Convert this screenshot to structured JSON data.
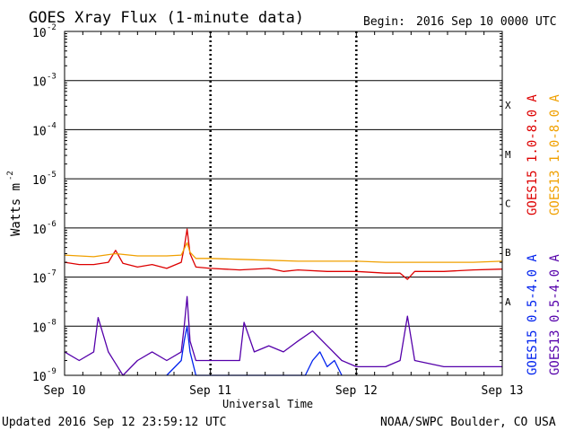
{
  "chart_data": {
    "type": "line",
    "title": "GOES Xray Flux (1-minute data)",
    "begin_label": "Begin:",
    "begin_value": "2016 Sep 10 0000 UTC",
    "xlabel": "Universal Time",
    "ylabel": "Watts m",
    "ylabel_sup": "-2",
    "x_ticks": [
      "Sep 10",
      "Sep 11",
      "Sep 12",
      "Sep 13"
    ],
    "x_range_days": [
      0,
      3
    ],
    "yscale": "log",
    "ylim": [
      1e-09,
      0.01
    ],
    "y_ticks": [
      {
        "base": "10",
        "exp": "-9",
        "value": 1e-09
      },
      {
        "base": "10",
        "exp": "-8",
        "value": 1e-08
      },
      {
        "base": "10",
        "exp": "-7",
        "value": 1e-07
      },
      {
        "base": "10",
        "exp": "-6",
        "value": 1e-06
      },
      {
        "base": "10",
        "exp": "-5",
        "value": 1e-05
      },
      {
        "base": "10",
        "exp": "-4",
        "value": 0.0001
      },
      {
        "base": "10",
        "exp": "-3",
        "value": 0.001
      },
      {
        "base": "10",
        "exp": "-2",
        "value": 0.01
      }
    ],
    "flare_classes": [
      {
        "label": "A",
        "value": 1e-08
      },
      {
        "label": "B",
        "value": 1e-07
      },
      {
        "label": "C",
        "value": 1e-06
      },
      {
        "label": "M",
        "value": 1e-05
      },
      {
        "label": "X",
        "value": 0.0001
      }
    ],
    "series": [
      {
        "name": "GOES15 1.0-8.0 A",
        "color": "#dd0000",
        "x": [
          0,
          0.1,
          0.2,
          0.3,
          0.35,
          0.4,
          0.5,
          0.6,
          0.7,
          0.8,
          0.82,
          0.84,
          0.86,
          0.9,
          1.0,
          1.2,
          1.4,
          1.5,
          1.6,
          1.8,
          2.0,
          2.2,
          2.3,
          2.35,
          2.4,
          2.6,
          2.8,
          3.0
        ],
        "values": [
          2e-07,
          1.8e-07,
          1.8e-07,
          2e-07,
          3.5e-07,
          1.9e-07,
          1.6e-07,
          1.8e-07,
          1.5e-07,
          2e-07,
          4e-07,
          9.5e-07,
          3e-07,
          1.6e-07,
          1.5e-07,
          1.4e-07,
          1.5e-07,
          1.3e-07,
          1.4e-07,
          1.3e-07,
          1.3e-07,
          1.2e-07,
          1.2e-07,
          9e-08,
          1.3e-07,
          1.3e-07,
          1.4e-07,
          1.45e-07
        ]
      },
      {
        "name": "GOES13 1.0-8.0 A",
        "color": "#f0a000",
        "x": [
          0,
          0.2,
          0.35,
          0.5,
          0.7,
          0.8,
          0.84,
          0.86,
          0.9,
          1.0,
          1.2,
          1.4,
          1.6,
          1.8,
          2.0,
          2.2,
          2.4,
          2.6,
          2.8,
          3.0
        ],
        "values": [
          2.8e-07,
          2.6e-07,
          3e-07,
          2.7e-07,
          2.7e-07,
          2.8e-07,
          5e-07,
          3.2e-07,
          2.4e-07,
          2.4e-07,
          2.3e-07,
          2.2e-07,
          2.1e-07,
          2.1e-07,
          2.1e-07,
          2e-07,
          2e-07,
          2e-07,
          2e-07,
          2.1e-07
        ]
      },
      {
        "name": "GOES15 0.5-4.0 A",
        "color": "#0022ee",
        "x": [
          0.7,
          0.8,
          0.82,
          0.84,
          0.86,
          0.9,
          1.65,
          1.7,
          1.75,
          1.8,
          1.85,
          1.9
        ],
        "values": [
          1e-09,
          2e-09,
          5e-09,
          1e-08,
          3e-09,
          1e-09,
          1e-09,
          2e-09,
          3e-09,
          1.5e-09,
          2e-09,
          1e-09
        ]
      },
      {
        "name": "GOES13 0.5-4.0 A",
        "color": "#5500aa",
        "x": [
          0,
          0.1,
          0.2,
          0.23,
          0.3,
          0.4,
          0.5,
          0.6,
          0.7,
          0.8,
          0.82,
          0.84,
          0.86,
          0.9,
          1.0,
          1.2,
          1.23,
          1.3,
          1.4,
          1.5,
          1.6,
          1.7,
          1.8,
          1.9,
          2.0,
          2.2,
          2.3,
          2.35,
          2.4,
          2.6,
          2.8,
          3.0
        ],
        "values": [
          3e-09,
          2e-09,
          3e-09,
          1.5e-08,
          3e-09,
          1e-09,
          2e-09,
          3e-09,
          2e-09,
          3e-09,
          1e-08,
          4e-08,
          5e-09,
          2e-09,
          2e-09,
          2e-09,
          1.2e-08,
          3e-09,
          4e-09,
          3e-09,
          5e-09,
          8e-09,
          4e-09,
          2e-09,
          1.5e-09,
          1.5e-09,
          2e-09,
          1.6e-08,
          2e-09,
          1.5e-09,
          1.5e-09,
          1.5e-09
        ]
      }
    ]
  },
  "footer": {
    "updated": "Updated 2016 Sep 12 23:59:12 UTC",
    "credit": "NOAA/SWPC Boulder, CO USA"
  }
}
